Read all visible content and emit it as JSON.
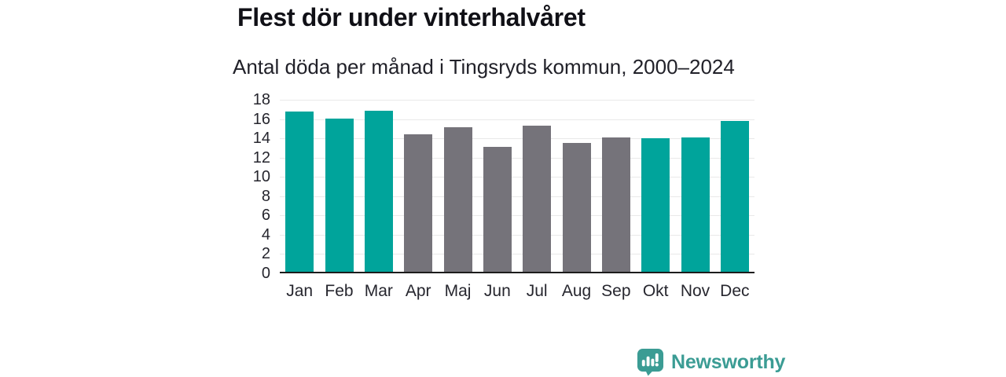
{
  "page": {
    "background": "#ffffff"
  },
  "header": {
    "title": "Flest dör under vinterhalvåret",
    "subtitle": "Antal döda per månad i Tingsryds kommun, 2000–2024"
  },
  "chart_data": {
    "type": "bar",
    "title": "Flest dör under vinterhalvåret",
    "subtitle": "Antal döda per månad i Tingsryds kommun, 2000–2024",
    "categories": [
      "Jan",
      "Feb",
      "Mar",
      "Apr",
      "Maj",
      "Jun",
      "Jul",
      "Aug",
      "Sep",
      "Okt",
      "Nov",
      "Dec"
    ],
    "values": [
      16.7,
      16.0,
      16.8,
      14.3,
      15.1,
      13.0,
      15.2,
      13.4,
      14.0,
      13.9,
      14.0,
      15.7
    ],
    "bar_styles": [
      "highlight",
      "highlight",
      "highlight",
      "muted",
      "muted",
      "muted",
      "muted",
      "muted",
      "muted",
      "highlight",
      "highlight",
      "highlight"
    ],
    "palette": {
      "highlight": "#00a49b",
      "muted": "#75737a"
    },
    "ylabel": "",
    "xlabel": "",
    "ylim": [
      0,
      18
    ],
    "yticks": [
      0,
      2,
      4,
      6,
      8,
      10,
      12,
      14,
      16,
      18
    ],
    "grid": true,
    "gridline_color": "#e9e9e9",
    "axis_line_color": "#1c1c1c",
    "tick_label_color": "#26262e",
    "legend_position": "none"
  },
  "footer": {
    "logo_text": "Newsworthy",
    "logo_color": "#3b9c94"
  }
}
